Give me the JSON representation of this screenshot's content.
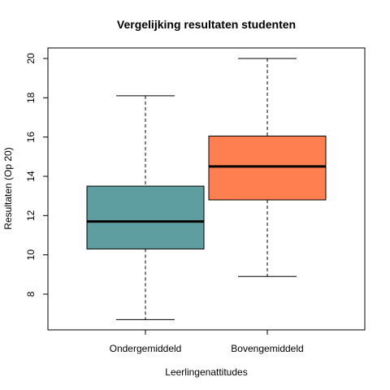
{
  "chart_data": {
    "type": "box",
    "title": "Vergelijking resultaten studenten",
    "xlabel": "Leerlingenattitudes",
    "ylabel": "Resultaten (Op 20)",
    "categories": [
      "Ondergemiddeld",
      "Bovengemiddeld"
    ],
    "ylim": [
      6.0,
      20.5
    ],
    "yticks": [
      8,
      10,
      12,
      14,
      16,
      18,
      20
    ],
    "grid": false,
    "boxes": [
      {
        "category": "Ondergemiddeld",
        "min": 6.7,
        "q1": 10.3,
        "median": 11.7,
        "q3": 13.5,
        "max": 18.1,
        "color": "#5f9ea0"
      },
      {
        "category": "Bovengemiddeld",
        "min": 8.9,
        "q1": 12.8,
        "median": 14.5,
        "q3": 16.05,
        "max": 20.0,
        "color": "#ff7f50"
      }
    ]
  }
}
